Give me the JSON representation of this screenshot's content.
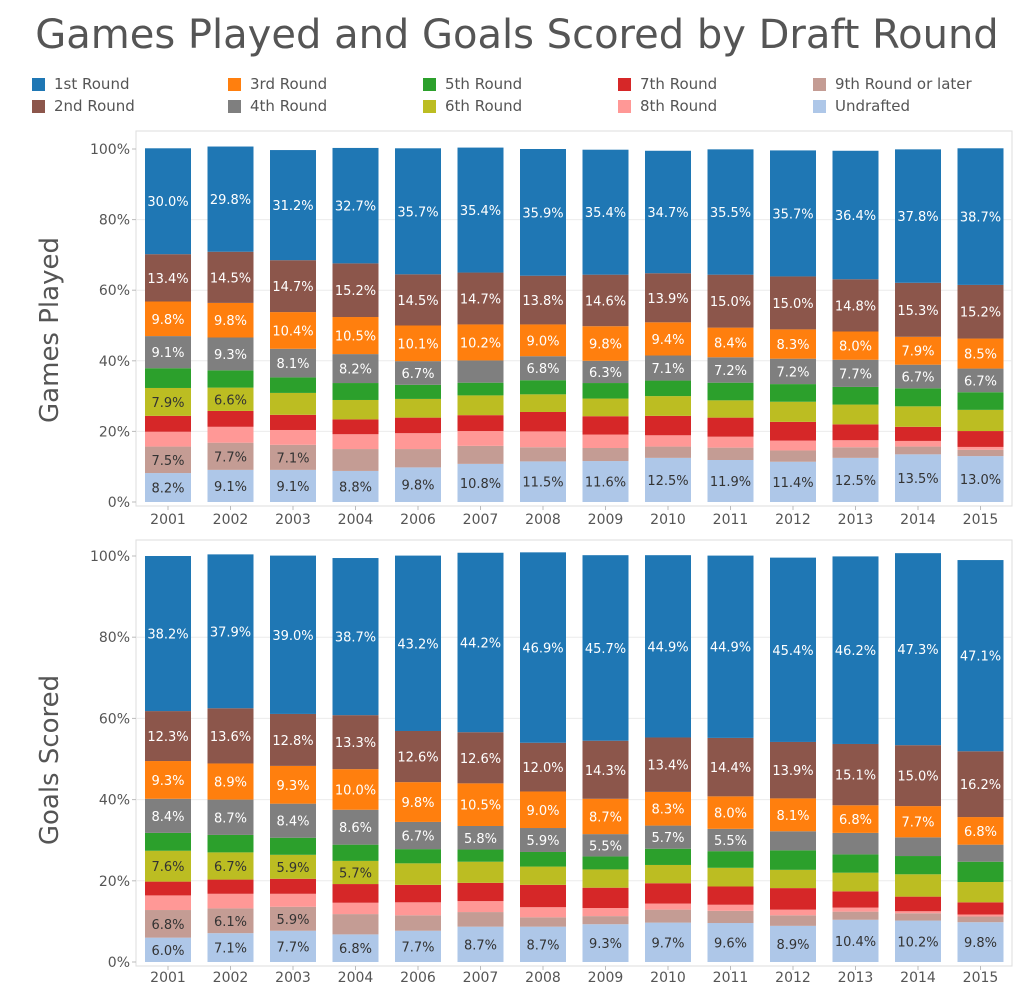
{
  "title": "Games Played and Goals Scored by Draft Round",
  "legend": [
    {
      "name": "1st Round",
      "color": "#1f77b4"
    },
    {
      "name": "2nd Round",
      "color": "#8c564b"
    },
    {
      "name": "3rd Round",
      "color": "#ff7f0e"
    },
    {
      "name": "4th Round",
      "color": "#7f7f7f"
    },
    {
      "name": "5th Round",
      "color": "#2ca02c"
    },
    {
      "name": "6th Round",
      "color": "#bcbd22"
    },
    {
      "name": "7th Round",
      "color": "#d62728"
    },
    {
      "name": "8th Round",
      "color": "#ff9896"
    },
    {
      "name": "9th Round or later",
      "color": "#c49c94"
    },
    {
      "name": "Undrafted",
      "color": "#aec7e8"
    }
  ],
  "chart_data": [
    {
      "type": "bar",
      "stacked": "percent",
      "ylabel": "Games Played",
      "ylim": [
        0,
        100
      ],
      "yticks": [
        "0%",
        "20%",
        "40%",
        "60%",
        "80%",
        "100%"
      ],
      "grid": true,
      "categories": [
        "2001",
        "2002",
        "2003",
        "2004",
        "2006",
        "2007",
        "2008",
        "2009",
        "2010",
        "2011",
        "2012",
        "2013",
        "2014",
        "2015"
      ],
      "series": [
        {
          "name": "Undrafted",
          "values": [
            8.2,
            9.1,
            9.1,
            8.8,
            9.8,
            10.8,
            11.5,
            11.6,
            12.5,
            11.9,
            11.4,
            12.5,
            13.5,
            13.0
          ],
          "labels": [
            "8.2%",
            "9.1%",
            "9.1%",
            "8.8%",
            "9.8%",
            "10.8%",
            "11.5%",
            "11.6%",
            "12.5%",
            "11.9%",
            "11.4%",
            "12.5%",
            "13.5%",
            "13.0%"
          ]
        },
        {
          "name": "9th Round or later",
          "values": [
            7.5,
            7.7,
            7.1,
            6.2,
            5.2,
            5.1,
            4.0,
            3.7,
            3.2,
            3.5,
            3.2,
            3.0,
            2.2,
            1.8
          ],
          "labels": [
            "7.5%",
            "7.7%",
            "7.1%",
            "",
            "",
            "",
            "",
            "",
            "",
            "",
            "",
            "",
            "",
            ""
          ]
        },
        {
          "name": "8th Round",
          "values": [
            4.2,
            4.5,
            4.2,
            4.2,
            4.5,
            4.2,
            4.5,
            3.8,
            3.2,
            3.1,
            2.8,
            2.0,
            1.6,
            0.8
          ],
          "labels": [
            "",
            "",
            "",
            "",
            "",
            "",
            "",
            "",
            "",
            "",
            "",
            "",
            "",
            ""
          ]
        },
        {
          "name": "7th Round",
          "values": [
            4.5,
            4.5,
            4.3,
            4.2,
            4.4,
            4.5,
            5.5,
            5.2,
            5.5,
            5.4,
            5.3,
            4.5,
            4.0,
            4.5
          ],
          "labels": [
            "",
            "",
            "",
            "",
            "",
            "",
            "",
            "",
            "",
            "",
            "",
            "",
            "",
            ""
          ]
        },
        {
          "name": "6th Round",
          "values": [
            7.9,
            6.6,
            6.2,
            5.5,
            5.3,
            5.6,
            5.0,
            5.0,
            5.6,
            4.9,
            5.7,
            5.6,
            5.8,
            6.0
          ],
          "labels": [
            "7.9%",
            "6.6%",
            "",
            "",
            "",
            "",
            "",
            "",
            "",
            "",
            "",
            "",
            "",
            ""
          ]
        },
        {
          "name": "5th Round",
          "values": [
            5.6,
            4.9,
            4.4,
            4.8,
            4.0,
            3.6,
            4.0,
            4.4,
            4.4,
            5.0,
            5.0,
            5.0,
            5.1,
            5.0
          ],
          "labels": [
            "",
            "",
            "",
            "",
            "",
            "",
            "",
            "",
            "",
            "",
            "",
            "",
            "",
            ""
          ]
        },
        {
          "name": "4th Round",
          "values": [
            9.1,
            9.3,
            8.1,
            8.2,
            6.7,
            6.3,
            6.8,
            6.3,
            7.1,
            7.2,
            7.2,
            7.7,
            6.7,
            6.7
          ],
          "labels": [
            "9.1%",
            "9.3%",
            "8.1%",
            "8.2%",
            "6.7%",
            "",
            "6.8%",
            "6.3%",
            "7.1%",
            "7.2%",
            "7.2%",
            "7.7%",
            "6.7%",
            "6.7%"
          ]
        },
        {
          "name": "3rd Round",
          "values": [
            9.8,
            9.8,
            10.4,
            10.5,
            10.1,
            10.2,
            9.0,
            9.8,
            9.4,
            8.4,
            8.3,
            8.0,
            7.9,
            8.5
          ],
          "labels": [
            "9.8%",
            "9.8%",
            "10.4%",
            "10.5%",
            "10.1%",
            "10.2%",
            "9.0%",
            "9.8%",
            "9.4%",
            "8.4%",
            "8.3%",
            "8.0%",
            "7.9%",
            "8.5%"
          ]
        },
        {
          "name": "2nd Round",
          "values": [
            13.4,
            14.5,
            14.7,
            15.2,
            14.5,
            14.7,
            13.8,
            14.6,
            13.9,
            15.0,
            15.0,
            14.8,
            15.3,
            15.2
          ],
          "labels": [
            "13.4%",
            "14.5%",
            "14.7%",
            "15.2%",
            "14.5%",
            "14.7%",
            "13.8%",
            "14.6%",
            "13.9%",
            "15.0%",
            "15.0%",
            "14.8%",
            "15.3%",
            "15.2%"
          ]
        },
        {
          "name": "1st Round",
          "values": [
            30.0,
            29.8,
            31.2,
            32.7,
            35.7,
            35.4,
            35.9,
            35.4,
            34.7,
            35.5,
            35.7,
            36.4,
            37.8,
            38.7
          ],
          "labels": [
            "30.0%",
            "29.8%",
            "31.2%",
            "32.7%",
            "35.7%",
            "35.4%",
            "35.9%",
            "35.4%",
            "34.7%",
            "35.5%",
            "35.7%",
            "36.4%",
            "37.8%",
            "38.7%"
          ]
        }
      ]
    },
    {
      "type": "bar",
      "stacked": "percent",
      "ylabel": "Goals Scored",
      "ylim": [
        0,
        100
      ],
      "yticks": [
        "0%",
        "20%",
        "40%",
        "60%",
        "80%",
        "100%"
      ],
      "grid": true,
      "categories": [
        "2001",
        "2002",
        "2003",
        "2004",
        "2006",
        "2007",
        "2008",
        "2009",
        "2010",
        "2011",
        "2012",
        "2013",
        "2014",
        "2015"
      ],
      "series": [
        {
          "name": "Undrafted",
          "values": [
            6.0,
            7.1,
            7.7,
            6.8,
            7.7,
            8.7,
            8.7,
            9.3,
            9.7,
            9.6,
            8.9,
            10.4,
            10.2,
            9.8
          ],
          "labels": [
            "6.0%",
            "7.1%",
            "7.7%",
            "6.8%",
            "7.7%",
            "8.7%",
            "8.7%",
            "9.3%",
            "9.7%",
            "9.6%",
            "8.9%",
            "10.4%",
            "10.2%",
            "9.8%"
          ]
        },
        {
          "name": "9th Round or later",
          "values": [
            6.8,
            6.1,
            5.9,
            5.0,
            3.8,
            3.6,
            2.3,
            2.0,
            3.2,
            3.0,
            2.6,
            2.0,
            1.8,
            1.4
          ],
          "labels": [
            "6.8%",
            "6.1%",
            "5.9%",
            "",
            "",
            "",
            "",
            "",
            "",
            "",
            "",
            "",
            "",
            ""
          ]
        },
        {
          "name": "8th Round",
          "values": [
            3.6,
            3.6,
            3.2,
            2.8,
            3.2,
            2.7,
            2.5,
            2.0,
            1.5,
            1.5,
            1.4,
            1.0,
            0.5,
            0.5
          ],
          "labels": [
            "",
            "",
            "",
            "",
            "",
            "",
            "",
            "",
            "",
            "",
            "",
            "",
            "",
            ""
          ]
        },
        {
          "name": "7th Round",
          "values": [
            3.4,
            3.5,
            3.7,
            4.6,
            4.3,
            4.5,
            5.5,
            5.0,
            5.0,
            4.5,
            5.3,
            4.0,
            3.6,
            3.0
          ],
          "labels": [
            "",
            "",
            "",
            "",
            "",
            "",
            "",
            "",
            "",
            "",
            "",
            "",
            "",
            ""
          ]
        },
        {
          "name": "6th Round",
          "values": [
            7.6,
            6.7,
            5.9,
            5.7,
            5.3,
            5.2,
            4.5,
            4.5,
            4.5,
            4.6,
            4.5,
            4.6,
            5.5,
            5.0
          ],
          "labels": [
            "7.6%",
            "6.7%",
            "5.9%",
            "5.7%",
            "",
            "",
            "",
            "",
            "",
            "",
            "",
            "",
            "",
            ""
          ]
        },
        {
          "name": "5th Round",
          "values": [
            4.4,
            4.3,
            4.2,
            4.0,
            3.5,
            3.0,
            3.6,
            3.2,
            4.0,
            4.1,
            4.8,
            4.5,
            4.5,
            5.0
          ],
          "labels": [
            "",
            "",
            "",
            "",
            "",
            "",
            "",
            "",
            "",
            "",
            "",
            "",
            "",
            ""
          ]
        },
        {
          "name": "4th Round",
          "values": [
            8.4,
            8.7,
            8.4,
            8.6,
            6.7,
            5.8,
            5.9,
            5.5,
            5.7,
            5.5,
            4.7,
            5.3,
            4.6,
            4.2
          ],
          "labels": [
            "8.4%",
            "8.7%",
            "8.4%",
            "8.6%",
            "6.7%",
            "5.8%",
            "5.9%",
            "5.5%",
            "5.7%",
            "5.5%",
            "",
            "",
            "",
            ""
          ]
        },
        {
          "name": "3rd Round",
          "values": [
            9.3,
            8.9,
            9.3,
            10.0,
            9.8,
            10.5,
            9.0,
            8.7,
            8.3,
            8.0,
            8.1,
            6.8,
            7.7,
            6.8
          ],
          "labels": [
            "9.3%",
            "8.9%",
            "9.3%",
            "10.0%",
            "9.8%",
            "10.5%",
            "9.0%",
            "8.7%",
            "8.3%",
            "8.0%",
            "8.1%",
            "6.8%",
            "7.7%",
            "6.8%"
          ]
        },
        {
          "name": "2nd Round",
          "values": [
            12.3,
            13.6,
            12.8,
            13.3,
            12.6,
            12.6,
            12.0,
            14.3,
            13.4,
            14.4,
            13.9,
            15.1,
            15.0,
            16.2
          ],
          "labels": [
            "12.3%",
            "13.6%",
            "12.8%",
            "13.3%",
            "12.6%",
            "12.6%",
            "12.0%",
            "14.3%",
            "13.4%",
            "14.4%",
            "13.9%",
            "15.1%",
            "15.0%",
            "16.2%"
          ]
        },
        {
          "name": "1st Round",
          "values": [
            38.2,
            37.9,
            39.0,
            38.7,
            43.2,
            44.2,
            46.9,
            45.7,
            44.9,
            44.9,
            45.4,
            46.2,
            47.3,
            47.1
          ],
          "labels": [
            "38.2%",
            "37.9%",
            "39.0%",
            "38.7%",
            "43.2%",
            "44.2%",
            "46.9%",
            "45.7%",
            "44.9%",
            "44.9%",
            "45.4%",
            "46.2%",
            "47.3%",
            "47.1%"
          ]
        }
      ]
    }
  ]
}
